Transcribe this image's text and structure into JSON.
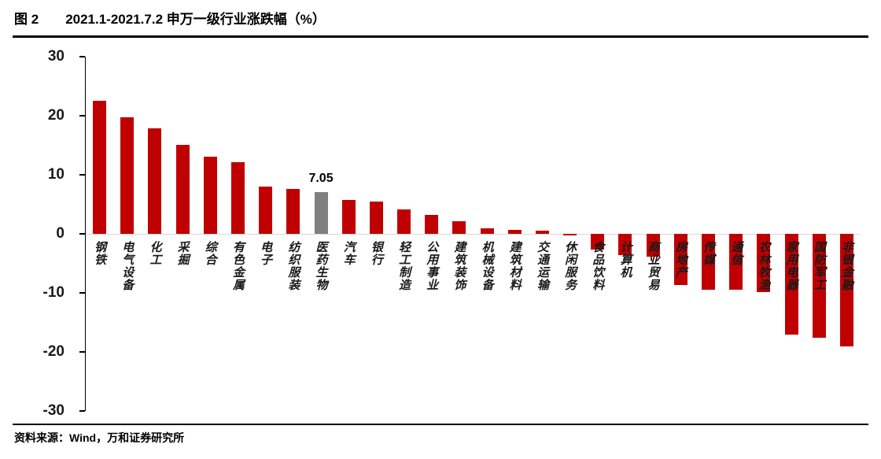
{
  "header": {
    "figure_label": "图 2",
    "title": "2021.1-2021.7.2 申万一级行业涨跌幅（%）"
  },
  "footer": {
    "source": "资料来源：Wind，万和证券研究所"
  },
  "chart_data": {
    "type": "bar",
    "title": "2021.1-2021.7.2 申万一级行业涨跌幅（%）",
    "xlabel": "",
    "ylabel": "",
    "ylim": [
      -30,
      30
    ],
    "yticks": [
      30,
      20,
      10,
      0,
      -10,
      -20,
      -30
    ],
    "grid": false,
    "legend": "none",
    "bar_color": "#C00000",
    "highlight_color": "#808080",
    "highlight_index": 8,
    "highlight_label": "7.05",
    "categories": [
      "钢铁",
      "电气设备",
      "化工",
      "采掘",
      "综合",
      "有色金属",
      "电子",
      "纺织服装",
      "医药生物",
      "汽车",
      "银行",
      "轻工制造",
      "公用事业",
      "建筑装饰",
      "机械设备",
      "建筑材料",
      "交通运输",
      "休闲服务",
      "食品饮料",
      "计算机",
      "商业贸易",
      "房地产",
      "传媒",
      "通信",
      "农林牧渔",
      "家用电器",
      "国防军工",
      "非银金融"
    ],
    "values": [
      22.5,
      19.7,
      17.9,
      15.1,
      13.1,
      12.1,
      8.0,
      7.6,
      7.05,
      5.7,
      5.5,
      4.2,
      3.2,
      2.1,
      0.9,
      0.7,
      0.6,
      -0.3,
      -2.6,
      -3.6,
      -3.9,
      -8.6,
      -9.4,
      -9.4,
      -9.9,
      -17.1,
      -17.6,
      -19.0
    ]
  }
}
